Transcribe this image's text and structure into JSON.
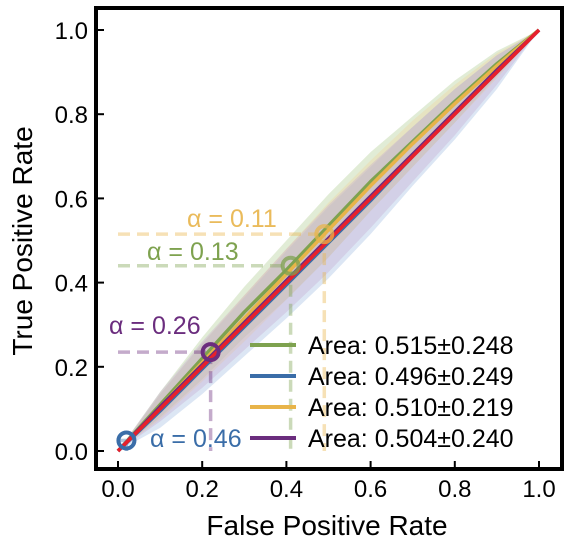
{
  "chart_data": {
    "type": "line",
    "title": "",
    "xlabel": "False Positive Rate",
    "ylabel": "True Positive Rate",
    "xlim": [
      -0.05,
      1.02
    ],
    "ylim": [
      -0.05,
      1.05
    ],
    "xticks": [
      "0.0",
      "0.2",
      "0.4",
      "0.6",
      "0.8",
      "1.0"
    ],
    "yticks": [
      "0.0",
      "0.2",
      "0.4",
      "0.6",
      "0.8",
      "1.0"
    ],
    "grid": false,
    "legend_position": "bottom-right",
    "series": [
      {
        "name": "Area: 0.515±0.248",
        "color": "#7ea24f",
        "band_color": "#a9c98a",
        "x": [
          0.0,
          0.1,
          0.2,
          0.3,
          0.4,
          0.5,
          0.6,
          0.7,
          0.8,
          0.9,
          1.0
        ],
        "y": [
          0.0,
          0.11,
          0.22,
          0.33,
          0.43,
          0.535,
          0.64,
          0.735,
          0.83,
          0.92,
          1.0
        ],
        "band_half_width": [
          0.0,
          0.03,
          0.05,
          0.06,
          0.07,
          0.075,
          0.07,
          0.06,
          0.05,
          0.03,
          0.0
        ],
        "operating_point": {
          "x": 0.41,
          "y": 0.44,
          "label": "α = 0.13"
        }
      },
      {
        "name": "Area: 0.496±0.249",
        "color": "#3a6da8",
        "band_color": "#9bb7e0",
        "x": [
          0.0,
          0.1,
          0.2,
          0.3,
          0.4,
          0.5,
          0.6,
          0.7,
          0.8,
          0.9,
          1.0
        ],
        "y": [
          0.0,
          0.095,
          0.195,
          0.295,
          0.395,
          0.495,
          0.595,
          0.7,
          0.8,
          0.9,
          1.0
        ],
        "band_half_width": [
          0.0,
          0.04,
          0.06,
          0.07,
          0.08,
          0.085,
          0.08,
          0.07,
          0.06,
          0.04,
          0.0
        ],
        "operating_point": {
          "x": 0.02,
          "y": 0.025,
          "label": "α = 0.46"
        }
      },
      {
        "name": "Area: 0.510±0.219",
        "color": "#e8b449",
        "band_color": "#f0d49a",
        "x": [
          0.0,
          0.1,
          0.2,
          0.3,
          0.4,
          0.5,
          0.6,
          0.7,
          0.8,
          0.9,
          1.0
        ],
        "y": [
          0.0,
          0.105,
          0.21,
          0.315,
          0.42,
          0.525,
          0.63,
          0.73,
          0.825,
          0.915,
          1.0
        ],
        "band_half_width": [
          0.0,
          0.03,
          0.045,
          0.055,
          0.06,
          0.065,
          0.06,
          0.055,
          0.045,
          0.03,
          0.0
        ],
        "operating_point": {
          "x": 0.49,
          "y": 0.515,
          "label": "α = 0.11"
        }
      },
      {
        "name": "Area: 0.504±0.240",
        "color": "#6b2d7e",
        "band_color": "#c4a6cf",
        "x": [
          0.0,
          0.1,
          0.2,
          0.3,
          0.4,
          0.5,
          0.6,
          0.7,
          0.8,
          0.9,
          1.0
        ],
        "y": [
          0.0,
          0.105,
          0.205,
          0.305,
          0.405,
          0.505,
          0.605,
          0.705,
          0.805,
          0.905,
          1.0
        ],
        "band_half_width": [
          0.0,
          0.035,
          0.055,
          0.065,
          0.075,
          0.08,
          0.075,
          0.065,
          0.055,
          0.035,
          0.0
        ],
        "operating_point": {
          "x": 0.22,
          "y": 0.235,
          "label": "α = 0.26"
        }
      }
    ],
    "diagonal": {
      "color": "#e8202b",
      "x": [
        0.0,
        1.0
      ],
      "y": [
        0.0,
        1.0
      ]
    }
  }
}
